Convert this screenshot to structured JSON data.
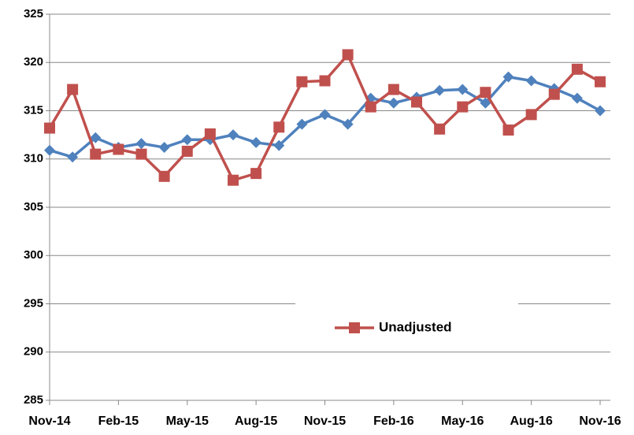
{
  "chart_data": {
    "type": "line",
    "categories": [
      "Nov-14",
      null,
      null,
      "Feb-15",
      null,
      null,
      "May-15",
      null,
      null,
      "Aug-15",
      null,
      null,
      "Nov-15",
      null,
      null,
      "Feb-16",
      null,
      null,
      "May-16",
      null,
      null,
      "Aug-16",
      null,
      null,
      "Nov-16"
    ],
    "series": [
      {
        "name": "Unadjusted",
        "color": "#c0504d",
        "marker": "square",
        "values": [
          313.2,
          317.2,
          310.5,
          311.0,
          310.5,
          308.2,
          310.8,
          312.6,
          307.8,
          308.5,
          313.3,
          318.0,
          318.1,
          320.8,
          315.4,
          317.2,
          315.9,
          313.1,
          315.4,
          316.9,
          313.0,
          314.6,
          316.7,
          319.3,
          318.0
        ]
      },
      {
        "color": "#4f81bd",
        "marker": "diamond",
        "values": [
          310.9,
          310.2,
          312.2,
          311.2,
          311.6,
          311.2,
          312.0,
          312.0,
          312.5,
          311.7,
          311.4,
          313.6,
          314.6,
          313.6,
          316.3,
          315.8,
          316.4,
          317.1,
          317.2,
          315.8,
          318.5,
          318.1,
          317.3,
          316.3,
          315.0
        ]
      }
    ],
    "ylim": [
      285,
      325
    ],
    "yticks": [
      285,
      290,
      295,
      300,
      305,
      310,
      315,
      320,
      325
    ],
    "grid": true,
    "legend": "lower-center"
  }
}
